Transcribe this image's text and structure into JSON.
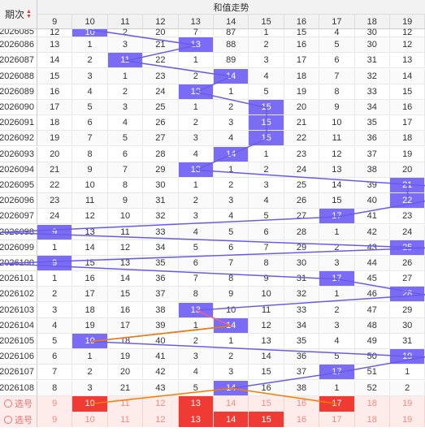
{
  "header": {
    "period_label": "期次",
    "trend_title": "和值走势"
  },
  "columns": [
    "9",
    "10",
    "11",
    "12",
    "13",
    "14",
    "15",
    "16",
    "17",
    "18",
    "19"
  ],
  "rows": [
    {
      "period": "2026085",
      "values": [
        "12",
        "10",
        "2",
        "20",
        "7",
        "87",
        "1",
        "15",
        "4",
        "30",
        "12"
      ]
    },
    {
      "period": "2026086",
      "values": [
        "13",
        "1",
        "3",
        "21",
        "13",
        "88",
        "2",
        "16",
        "5",
        "30",
        "12"
      ]
    },
    {
      "period": "2026087",
      "values": [
        "14",
        "2",
        "11",
        "22",
        "1",
        "89",
        "3",
        "17",
        "6",
        "31",
        "13"
      ]
    },
    {
      "period": "2026088",
      "values": [
        "15",
        "3",
        "1",
        "23",
        "2",
        "14",
        "4",
        "18",
        "7",
        "32",
        "14"
      ]
    },
    {
      "period": "2026089",
      "values": [
        "16",
        "4",
        "2",
        "24",
        "13",
        "1",
        "5",
        "19",
        "8",
        "33",
        "15"
      ]
    },
    {
      "period": "2026090",
      "values": [
        "17",
        "5",
        "3",
        "25",
        "1",
        "2",
        "15",
        "20",
        "9",
        "34",
        "16"
      ]
    },
    {
      "period": "2026091",
      "values": [
        "18",
        "6",
        "4",
        "26",
        "2",
        "3",
        "15",
        "21",
        "10",
        "35",
        "17"
      ]
    },
    {
      "period": "2026092",
      "values": [
        "19",
        "7",
        "5",
        "27",
        "3",
        "4",
        "15",
        "22",
        "11",
        "36",
        "18"
      ]
    },
    {
      "period": "2026093",
      "values": [
        "20",
        "8",
        "6",
        "28",
        "4",
        "14",
        "1",
        "23",
        "12",
        "37",
        "19"
      ]
    },
    {
      "period": "2026094",
      "values": [
        "21",
        "9",
        "7",
        "29",
        "13",
        "1",
        "2",
        "24",
        "13",
        "38",
        "20"
      ]
    },
    {
      "period": "2026095",
      "values": [
        "22",
        "10",
        "8",
        "30",
        "1",
        "2",
        "3",
        "25",
        "14",
        "39",
        "21"
      ]
    },
    {
      "period": "2026096",
      "values": [
        "23",
        "11",
        "9",
        "31",
        "2",
        "3",
        "4",
        "26",
        "15",
        "40",
        "22"
      ]
    },
    {
      "period": "2026097",
      "values": [
        "24",
        "12",
        "10",
        "32",
        "3",
        "4",
        "5",
        "27",
        "17",
        "41",
        "23"
      ]
    },
    {
      "period": "2026098",
      "values": [
        "9",
        "13",
        "11",
        "33",
        "4",
        "5",
        "6",
        "28",
        "1",
        "42",
        "24"
      ]
    },
    {
      "period": "2026099",
      "values": [
        "1",
        "14",
        "12",
        "34",
        "5",
        "6",
        "7",
        "29",
        "2",
        "43",
        "25"
      ]
    },
    {
      "period": "2026100",
      "values": [
        "9",
        "15",
        "13",
        "35",
        "6",
        "7",
        "8",
        "30",
        "3",
        "44",
        "26"
      ]
    },
    {
      "period": "2026101",
      "values": [
        "1",
        "16",
        "14",
        "36",
        "7",
        "8",
        "9",
        "31",
        "17",
        "45",
        "27"
      ]
    },
    {
      "period": "2026102",
      "values": [
        "2",
        "17",
        "15",
        "37",
        "8",
        "9",
        "10",
        "32",
        "1",
        "46",
        "28"
      ]
    },
    {
      "period": "2026103",
      "values": [
        "3",
        "18",
        "16",
        "38",
        "13",
        "10",
        "11",
        "33",
        "2",
        "47",
        "29"
      ]
    },
    {
      "period": "2026104",
      "values": [
        "4",
        "19",
        "17",
        "39",
        "1",
        "14",
        "12",
        "34",
        "3",
        "48",
        "30"
      ]
    },
    {
      "period": "2026105",
      "values": [
        "5",
        "10",
        "18",
        "40",
        "2",
        "1",
        "13",
        "35",
        "4",
        "49",
        "31"
      ]
    },
    {
      "period": "2026106",
      "values": [
        "6",
        "1",
        "19",
        "41",
        "3",
        "2",
        "14",
        "36",
        "5",
        "50",
        "19"
      ]
    },
    {
      "period": "2026107",
      "values": [
        "7",
        "2",
        "20",
        "42",
        "4",
        "3",
        "15",
        "37",
        "17",
        "51",
        "1"
      ]
    },
    {
      "period": "2026108",
      "values": [
        "8",
        "3",
        "21",
        "43",
        "5",
        "14",
        "16",
        "38",
        "1",
        "52",
        "2"
      ]
    }
  ],
  "hits": [
    1,
    4,
    2,
    5,
    4,
    6,
    6,
    6,
    5,
    4,
    10,
    10,
    8,
    0,
    10,
    0,
    8,
    10,
    4,
    5,
    1,
    10,
    8,
    5
  ],
  "select_rows": [
    {
      "label": "选号",
      "values": [
        "9",
        "10",
        "11",
        "12",
        "13",
        "14",
        "15",
        "16",
        "17",
        "18",
        "19"
      ],
      "picked": [
        1,
        4,
        8
      ]
    },
    {
      "label": "选号",
      "values": [
        "9",
        "10",
        "11",
        "12",
        "13",
        "14",
        "15",
        "16",
        "17",
        "18",
        "19"
      ],
      "picked": [
        4,
        5,
        6
      ]
    }
  ],
  "colors": {
    "hit": "#7b6cf6",
    "pick": "#ef3b33",
    "line": "#6b5ce7",
    "orange": "#f57c00",
    "pink": "#f06292"
  }
}
